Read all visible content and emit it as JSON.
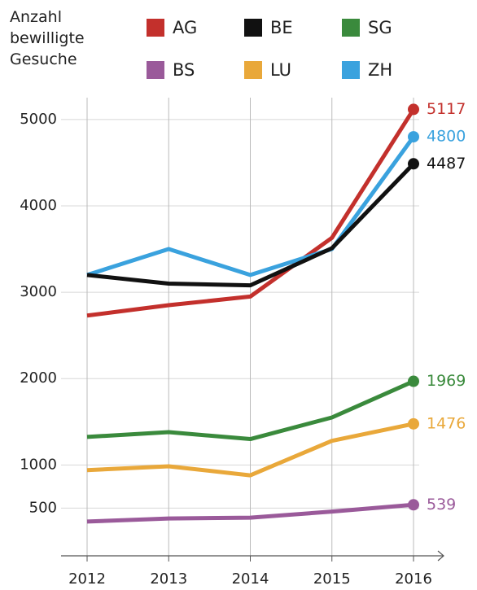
{
  "chart_data": {
    "type": "line",
    "title": "Anzahl bewilligte Gesuche",
    "categories": [
      "2012",
      "2013",
      "2014",
      "2015",
      "2016"
    ],
    "series": [
      {
        "name": "AG",
        "color": "#c3302c",
        "values": [
          2730,
          2850,
          2950,
          3630,
          5117
        ]
      },
      {
        "name": "BE",
        "color": "#111111",
        "values": [
          3200,
          3100,
          3080,
          3510,
          4487
        ]
      },
      {
        "name": "SG",
        "color": "#3a8a3c",
        "values": [
          1325,
          1380,
          1300,
          1550,
          1969
        ]
      },
      {
        "name": "BS",
        "color": "#9a5a9a",
        "values": [
          345,
          380,
          390,
          460,
          539
        ]
      },
      {
        "name": "LU",
        "color": "#e9a83a",
        "values": [
          940,
          985,
          880,
          1280,
          1476
        ]
      },
      {
        "name": "ZH",
        "color": "#3aa2de",
        "values": [
          3200,
          3500,
          3200,
          3500,
          4800
        ]
      }
    ],
    "ylim": [
      0,
      5300
    ],
    "yticks": [
      500,
      1000,
      2000,
      3000,
      4000,
      5000
    ],
    "grid": true
  }
}
